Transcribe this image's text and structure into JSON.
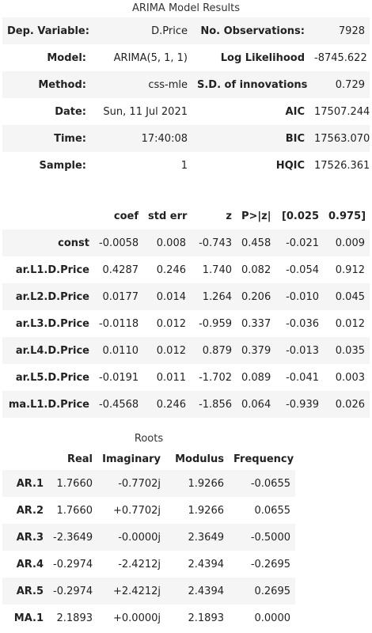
{
  "summary": {
    "title": "ARIMA Model Results",
    "rows": [
      {
        "label1": "Dep. Variable:",
        "value1": "D.Price",
        "label2": "No. Observations:",
        "value2": "7928"
      },
      {
        "label1": "Model:",
        "value1": "ARIMA(5, 1, 1)",
        "label2": "Log Likelihood",
        "value2": "-8745.622"
      },
      {
        "label1": "Method:",
        "value1": "css-mle",
        "label2": "S.D. of innovations",
        "value2": "0.729"
      },
      {
        "label1": "Date:",
        "value1": "Sun, 11 Jul 2021",
        "label2": "AIC",
        "value2": "17507.244"
      },
      {
        "label1": "Time:",
        "value1": "17:40:08",
        "label2": "BIC",
        "value2": "17563.070"
      },
      {
        "label1": "Sample:",
        "value1": "1",
        "label2": "HQIC",
        "value2": "17526.361"
      }
    ]
  },
  "coefficients": {
    "headers": [
      "coef",
      "std err",
      "z",
      "P>|z|",
      "[0.025",
      "0.975]"
    ],
    "rows": [
      {
        "name": "const",
        "values": [
          "-0.0058",
          "0.008",
          "-0.743",
          "0.458",
          "-0.021",
          "0.009"
        ]
      },
      {
        "name": "ar.L1.D.Price",
        "values": [
          "0.4287",
          "0.246",
          "1.740",
          "0.082",
          "-0.054",
          "0.912"
        ]
      },
      {
        "name": "ar.L2.D.Price",
        "values": [
          "0.0177",
          "0.014",
          "1.264",
          "0.206",
          "-0.010",
          "0.045"
        ]
      },
      {
        "name": "ar.L3.D.Price",
        "values": [
          "-0.0118",
          "0.012",
          "-0.959",
          "0.337",
          "-0.036",
          "0.012"
        ]
      },
      {
        "name": "ar.L4.D.Price",
        "values": [
          "0.0110",
          "0.012",
          "0.879",
          "0.379",
          "-0.013",
          "0.035"
        ]
      },
      {
        "name": "ar.L5.D.Price",
        "values": [
          "-0.0191",
          "0.011",
          "-1.702",
          "0.089",
          "-0.041",
          "0.003"
        ]
      },
      {
        "name": "ma.L1.D.Price",
        "values": [
          "-0.4568",
          "0.246",
          "-1.856",
          "0.064",
          "-0.939",
          "0.026"
        ]
      }
    ]
  },
  "roots": {
    "title": "Roots",
    "headers": [
      "Real",
      "Imaginary",
      "Modulus",
      "Frequency"
    ],
    "rows": [
      {
        "name": "AR.1",
        "values": [
          "1.7660",
          "-0.7702j",
          "1.9266",
          "-0.0655"
        ]
      },
      {
        "name": "AR.2",
        "values": [
          "1.7660",
          "+0.7702j",
          "1.9266",
          "0.0655"
        ]
      },
      {
        "name": "AR.3",
        "values": [
          "-2.3649",
          "-0.0000j",
          "2.3649",
          "-0.5000"
        ]
      },
      {
        "name": "AR.4",
        "values": [
          "-0.2974",
          "-2.4212j",
          "2.4394",
          "-0.2695"
        ]
      },
      {
        "name": "AR.5",
        "values": [
          "-0.2974",
          "+2.4212j",
          "2.4394",
          "0.2695"
        ]
      },
      {
        "name": "MA.1",
        "values": [
          "2.1893",
          "+0.0000j",
          "2.1893",
          "0.0000"
        ]
      }
    ]
  }
}
